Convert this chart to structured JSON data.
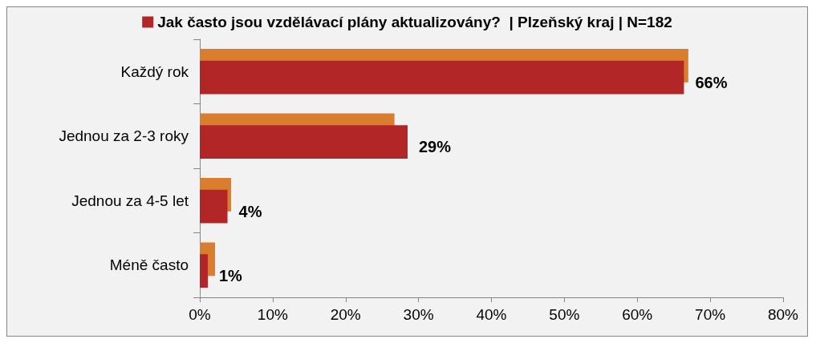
{
  "chart_data": {
    "type": "bar",
    "orientation": "horizontal",
    "categories": [
      "Každý rok",
      "Jednou za 2-3 roky",
      "Jednou za 4-5 let",
      "Méně často"
    ],
    "series": [
      {
        "color": "#d97d2e",
        "values": [
          67.0,
          26.7,
          4.3,
          2.1
        ]
      },
      {
        "name": "Jak často jsou vzdělávací plány aktualizovány?  | Plzeňský kraj | N=182",
        "color": "#b22628",
        "values": [
          66.4,
          28.5,
          3.8,
          1.1
        ],
        "value_labels": [
          "66%",
          "29%",
          "4%",
          "1%"
        ]
      }
    ],
    "xlim": [
      0,
      80
    ],
    "xticks": [
      {
        "value": 0,
        "label": "0%"
      },
      {
        "value": 10,
        "label": "10%"
      },
      {
        "value": 20,
        "label": "20%"
      },
      {
        "value": 30,
        "label": "30%"
      },
      {
        "value": 40,
        "label": "40%"
      },
      {
        "value": 50,
        "label": "50%"
      },
      {
        "value": 60,
        "label": "60%"
      },
      {
        "value": 70,
        "label": "70%"
      },
      {
        "value": 80,
        "label": "80%"
      }
    ],
    "grid": false,
    "legend": "top"
  }
}
